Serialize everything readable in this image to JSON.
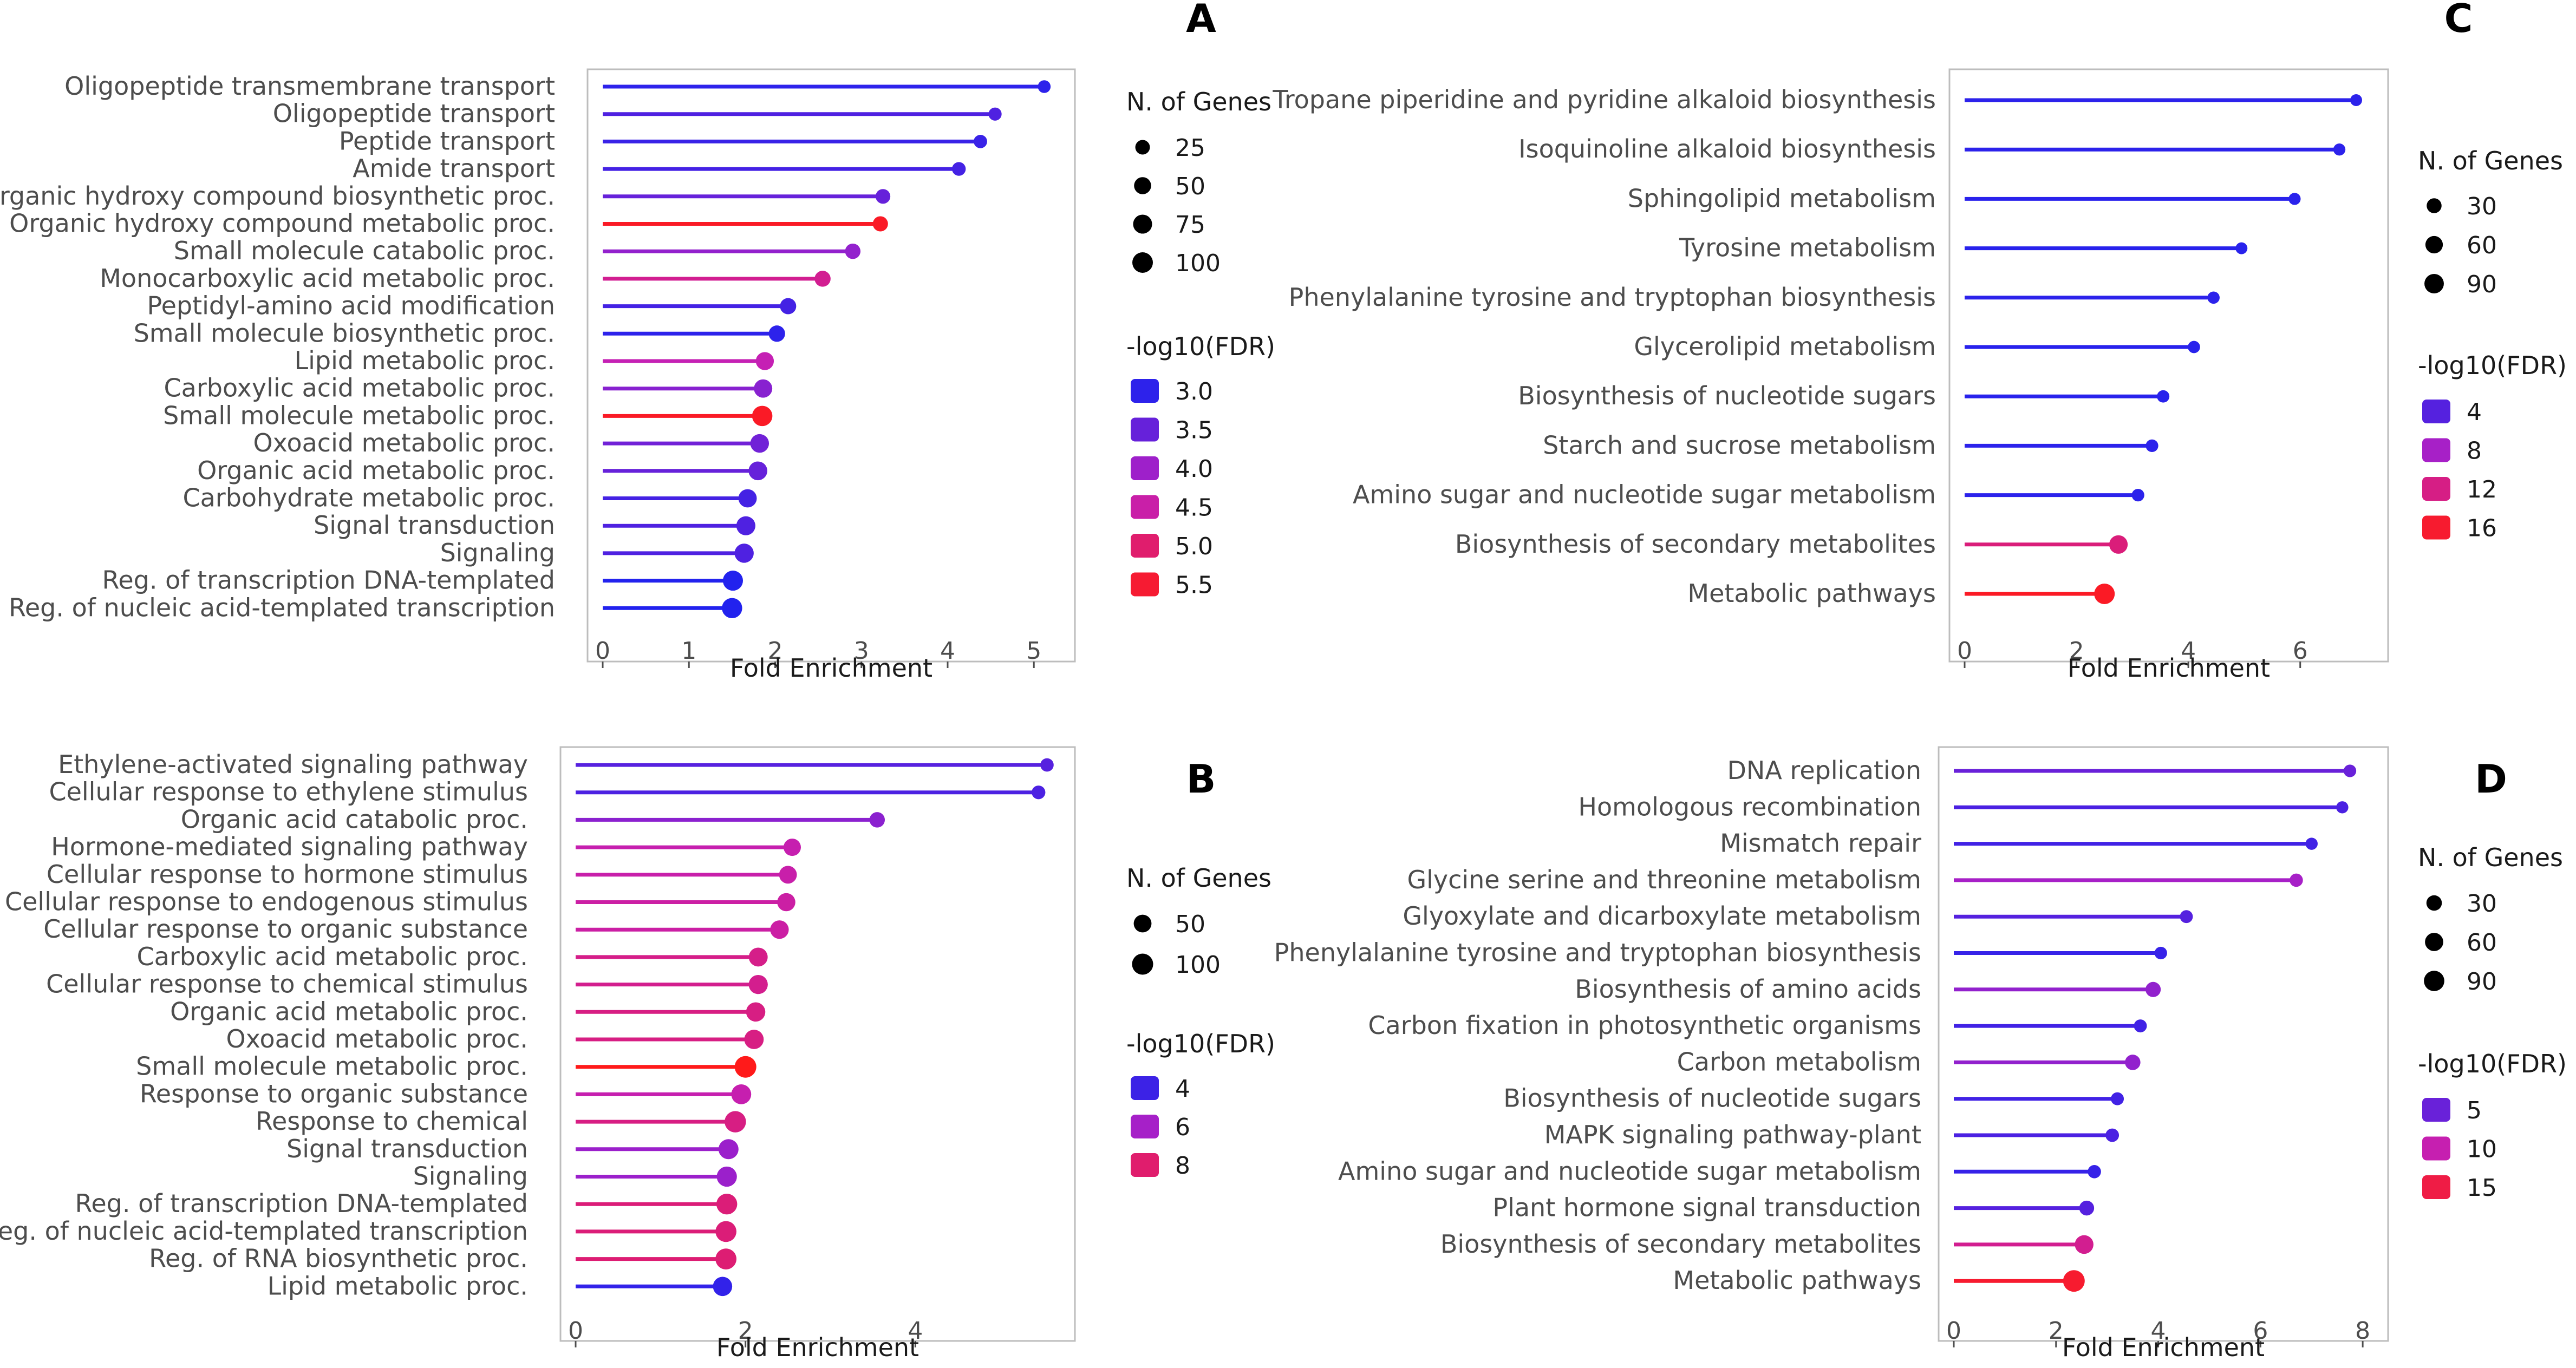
{
  "colors": {
    "low": "#2222ee",
    "high": "#ff1a1a",
    "axis": "#4d4d4d",
    "frame": "#bdbdbd"
  },
  "chart_data": [
    {
      "panel_label": "A",
      "type": "lollipop",
      "xlabel": "Fold Enrichment",
      "xlim": [
        0,
        5.3
      ],
      "xticks": [
        0,
        1,
        2,
        3,
        4,
        5
      ],
      "size_legend": {
        "title": "N. of Genes",
        "values": [
          25,
          50,
          75,
          100
        ]
      },
      "color_legend": {
        "title": "-log10(FDR)",
        "values": [
          3.0,
          3.5,
          4.0,
          4.5,
          5.0,
          5.5
        ],
        "labels": [
          "3.0",
          "3.5",
          "4.0",
          "4.5",
          "5.0",
          "5.5"
        ],
        "range": [
          2.9,
          5.7
        ]
      },
      "categories": [
        "Oligopeptide transmembrane transport",
        "Oligopeptide transport",
        "Peptide transport",
        "Amide transport",
        "Organic hydroxy compound biosynthetic proc.",
        "Organic hydroxy compound metabolic proc.",
        "Small molecule catabolic proc.",
        "Monocarboxylic acid metabolic proc.",
        "Peptidyl-amino acid modification",
        "Small molecule biosynthetic proc.",
        "Lipid metabolic proc.",
        "Carboxylic acid metabolic proc.",
        "Small molecule metabolic proc.",
        "Oxoacid metabolic proc.",
        "Organic acid metabolic proc.",
        "Carbohydrate metabolic proc.",
        "Signal transduction",
        "Signaling",
        "Reg. of transcription DNA-templated",
        "Reg. of nucleic acid-templated transcription"
      ],
      "fold_enrichment": [
        5.12,
        4.55,
        4.38,
        4.13,
        3.25,
        3.22,
        2.9,
        2.55,
        2.15,
        2.02,
        1.88,
        1.86,
        1.85,
        1.82,
        1.8,
        1.68,
        1.66,
        1.64,
        1.51,
        1.5
      ],
      "n_genes": [
        12,
        14,
        16,
        18,
        26,
        30,
        32,
        38,
        40,
        42,
        62,
        66,
        96,
        70,
        72,
        66,
        76,
        78,
        92,
        95
      ],
      "neg_log10_fdr": [
        3.0,
        3.3,
        3.1,
        3.2,
        3.5,
        5.6,
        3.9,
        4.7,
        3.2,
        3.0,
        4.4,
        3.8,
        5.6,
        3.6,
        3.5,
        3.2,
        3.3,
        3.3,
        2.9,
        2.9
      ]
    },
    {
      "panel_label": "B",
      "type": "lollipop",
      "xlabel": "Fold Enrichment",
      "xlim": [
        0,
        5.7
      ],
      "xticks": [
        0,
        2,
        4
      ],
      "size_legend": {
        "title": "N. of Genes",
        "values": [
          50,
          100
        ]
      },
      "color_legend": {
        "title": "-log10(FDR)",
        "values": [
          4,
          6,
          8
        ],
        "labels": [
          "4",
          "6",
          "8"
        ],
        "range": [
          3.5,
          9.5
        ]
      },
      "categories": [
        "Ethylene-activated signaling pathway",
        "Cellular response to ethylene stimulus",
        "Organic acid catabolic proc.",
        "Hormone-mediated signaling pathway",
        "Cellular response to hormone stimulus",
        "Cellular response to endogenous stimulus",
        "Cellular response to organic substance",
        "Carboxylic acid metabolic proc.",
        "Cellular response to chemical stimulus",
        "Organic acid metabolic proc.",
        "Oxoacid metabolic proc.",
        "Small molecule metabolic proc.",
        "Response to organic substance",
        "Response to chemical",
        "Signal transduction",
        "Signaling",
        "Reg. of transcription DNA-templated",
        "Reg. of nucleic acid-templated transcription",
        "Reg. of RNA biosynthetic proc.",
        "Lipid metabolic proc."
      ],
      "fold_enrichment": [
        5.55,
        5.45,
        3.55,
        2.55,
        2.5,
        2.48,
        2.4,
        2.15,
        2.15,
        2.12,
        2.1,
        2.0,
        1.95,
        1.88,
        1.8,
        1.78,
        1.78,
        1.77,
        1.77,
        1.73
      ],
      "n_genes": [
        10,
        12,
        25,
        45,
        50,
        55,
        60,
        65,
        68,
        70,
        72,
        110,
        80,
        105,
        82,
        84,
        95,
        97,
        98,
        70
      ],
      "neg_log10_fdr": [
        4.5,
        4.3,
        5.5,
        6.8,
        6.9,
        7.0,
        7.0,
        7.5,
        7.4,
        7.6,
        7.6,
        9.5,
        6.8,
        7.6,
        5.8,
        5.8,
        7.8,
        7.8,
        7.9,
        3.8
      ]
    },
    {
      "panel_label": "C",
      "type": "lollipop",
      "xlabel": "Fold Enrichment",
      "xlim": [
        0,
        7.3
      ],
      "xticks": [
        0,
        2,
        4,
        6
      ],
      "size_legend": {
        "title": "N. of Genes",
        "values": [
          30,
          60,
          90
        ]
      },
      "color_legend": {
        "title": "-log10(FDR)",
        "values": [
          4,
          8,
          12,
          16
        ],
        "labels": [
          "4",
          "8",
          "12",
          "16"
        ],
        "range": [
          1.5,
          17
        ]
      },
      "categories": [
        "Tropane piperidine and pyridine alkaloid biosynthesis",
        "Isoquinoline alkaloid biosynthesis",
        "Sphingolipid metabolism",
        "Tyrosine metabolism",
        "Phenylalanine tyrosine and tryptophan biosynthesis",
        "Glycerolipid metabolism",
        "Biosynthesis of nucleotide sugars",
        "Starch and sucrose metabolism",
        "Amino sugar and nucleotide sugar metabolism",
        "Biosynthesis of secondary metabolites",
        "Metabolic pathways"
      ],
      "fold_enrichment": [
        7.0,
        6.7,
        5.9,
        4.95,
        4.45,
        4.1,
        3.55,
        3.35,
        3.1,
        2.75,
        2.5
      ],
      "n_genes": [
        8,
        9,
        9,
        8,
        10,
        10,
        11,
        12,
        12,
        75,
        110
      ],
      "neg_log10_fdr": [
        2.0,
        2.0,
        1.9,
        1.8,
        2.0,
        1.8,
        1.8,
        2.0,
        2.0,
        12.5,
        16.5
      ]
    },
    {
      "panel_label": "D",
      "type": "lollipop",
      "xlabel": "Fold Enrichment",
      "xlim": [
        0,
        8.2
      ],
      "xticks": [
        0,
        2,
        4,
        6,
        8
      ],
      "size_legend": {
        "title": "N. of Genes",
        "values": [
          30,
          60,
          90
        ]
      },
      "color_legend": {
        "title": "-log10(FDR)",
        "values": [
          5,
          10,
          15
        ],
        "labels": [
          "5",
          "10",
          "15"
        ],
        "range": [
          1.5,
          17
        ]
      },
      "categories": [
        "DNA replication",
        "Homologous recombination",
        "Mismatch repair",
        "Glycine serine and threonine metabolism",
        "Glyoxylate and dicarboxylate metabolism",
        "Phenylalanine tyrosine and tryptophan biosynthesis",
        "Biosynthesis of amino acids",
        "Carbon fixation in photosynthetic organisms",
        "Carbon metabolism",
        "Biosynthesis of nucleotide sugars",
        "MAPK signaling pathway-plant",
        "Amino sugar and nucleotide sugar metabolism",
        "Plant hormone signal transduction",
        "Biosynthesis of secondary metabolites",
        "Metabolic pathways"
      ],
      "fold_enrichment": [
        7.75,
        7.6,
        7.0,
        6.7,
        4.55,
        4.05,
        3.9,
        3.65,
        3.5,
        3.2,
        3.1,
        2.75,
        2.6,
        2.55,
        2.35
      ],
      "n_genes": [
        10,
        8,
        8,
        14,
        12,
        10,
        28,
        12,
        30,
        12,
        15,
        14,
        25,
        65,
        110
      ],
      "neg_log10_fdr": [
        5.0,
        3.5,
        3.0,
        8.0,
        4.0,
        2.5,
        7.0,
        3.0,
        7.0,
        3.0,
        3.5,
        2.5,
        4.0,
        11.5,
        16.0
      ]
    }
  ]
}
